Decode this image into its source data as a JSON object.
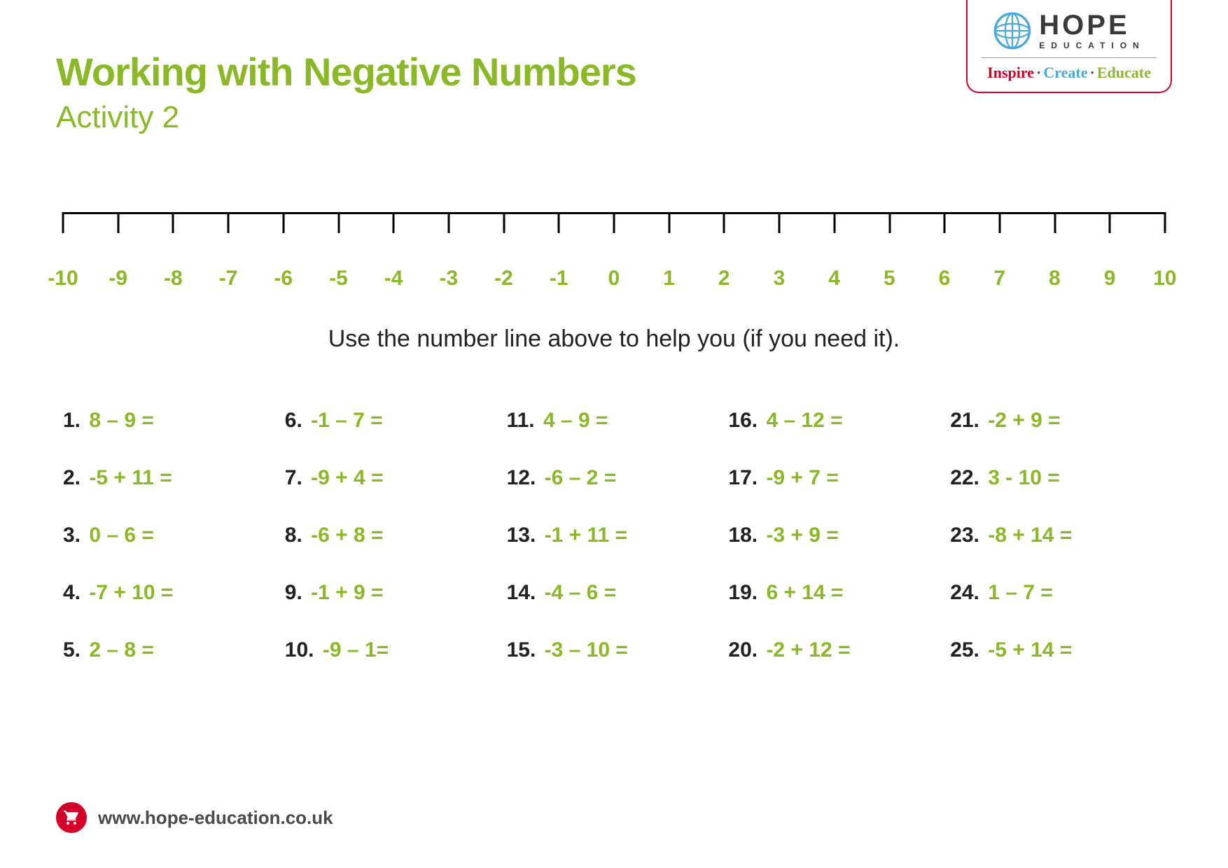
{
  "colors": {
    "green": "#8bb827",
    "dark": "#222222",
    "red": "#d4002a",
    "blue": "#4aa9d6",
    "grey": "#4a4a4a"
  },
  "header": {
    "title": "Working with Negative Numbers",
    "subtitle": "Activity 2"
  },
  "logo": {
    "brand": "HOPE",
    "sub": "EDUCATION",
    "tag1": "Inspire",
    "tag2": "Create",
    "tag3": "Educate"
  },
  "numberline": {
    "min": -10,
    "max": 10,
    "labels": [
      "-10",
      "-9",
      "-8",
      "-7",
      "-6",
      "-5",
      "-4",
      "-3",
      "-2",
      "-1",
      "0",
      "1",
      "2",
      "3",
      "4",
      "5",
      "6",
      "7",
      "8",
      "9",
      "10"
    ]
  },
  "instruction": "Use the number line above to help you (if you need it).",
  "problems": [
    {
      "n": "1.",
      "e": "8 – 9 ="
    },
    {
      "n": "2.",
      "e": "-5 + 11 ="
    },
    {
      "n": "3.",
      "e": "0 – 6 ="
    },
    {
      "n": "4.",
      "e": "-7 + 10 ="
    },
    {
      "n": "5.",
      "e": "2 – 8 ="
    },
    {
      "n": "6.",
      "e": "-1 – 7 ="
    },
    {
      "n": "7.",
      "e": "-9 + 4 ="
    },
    {
      "n": "8.",
      "e": "-6 + 8 ="
    },
    {
      "n": "9.",
      "e": "-1 + 9 ="
    },
    {
      "n": "10.",
      "e": "-9 – 1="
    },
    {
      "n": "11.",
      "e": "4 – 9 ="
    },
    {
      "n": "12.",
      "e": "-6 – 2 ="
    },
    {
      "n": "13.",
      "e": "-1 + 11 ="
    },
    {
      "n": "14.",
      "e": "-4 – 6 ="
    },
    {
      "n": "15.",
      "e": "-3 – 10 ="
    },
    {
      "n": "16.",
      "e": "4 – 12 ="
    },
    {
      "n": "17.",
      "e": "-9 + 7 ="
    },
    {
      "n": "18.",
      "e": "-3 + 9 ="
    },
    {
      "n": "19.",
      "e": "6 + 14 ="
    },
    {
      "n": "20.",
      "e": "-2 + 12 ="
    },
    {
      "n": "21.",
      "e": "-2 + 9 ="
    },
    {
      "n": "22.",
      "e": "3 - 10 ="
    },
    {
      "n": "23.",
      "e": "-8 + 14 ="
    },
    {
      "n": "24.",
      "e": "1 – 7 ="
    },
    {
      "n": "25.",
      "e": "-5 + 14 ="
    }
  ],
  "footer": {
    "url": "www.hope-education.co.uk"
  }
}
